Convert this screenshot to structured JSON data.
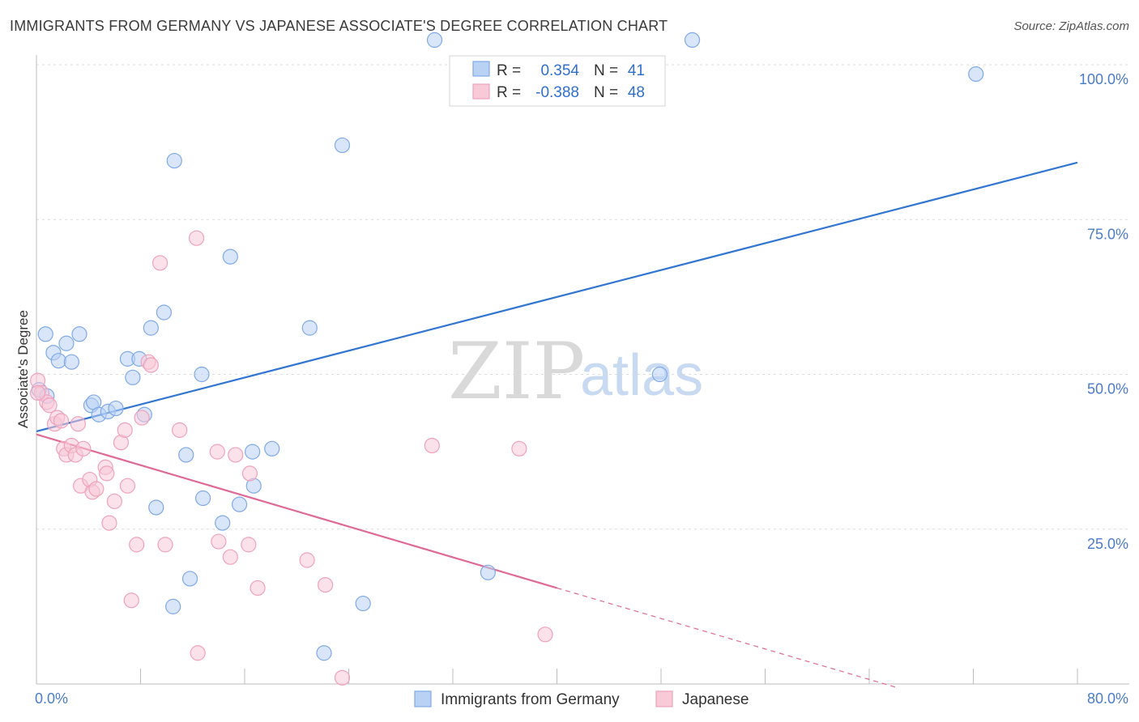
{
  "title": "IMMIGRANTS FROM GERMANY VS JAPANESE ASSOCIATE'S DEGREE CORRELATION CHART",
  "source": "Source: ZipAtlas.com",
  "watermark": {
    "zip": "ZIP",
    "atlas": "atlas"
  },
  "chart_data": {
    "type": "scatter",
    "xlabel": "",
    "ylabel": "Associate's Degree",
    "xlim": [
      0,
      80
    ],
    "ylim": [
      0,
      100
    ],
    "x_tick_labels": {
      "min": "0.0%",
      "max": "80.0%"
    },
    "y_ticks": [
      25,
      50,
      75,
      100
    ],
    "y_tick_labels": [
      "25.0%",
      "50.0%",
      "75.0%",
      "100.0%"
    ],
    "legend": {
      "position": "top-center",
      "rows": [
        {
          "r_label": "R =",
          "r_value": "0.354",
          "n_label": "N =",
          "n_value": "41"
        },
        {
          "r_label": "R =",
          "r_value": "-0.388",
          "n_label": "N =",
          "n_value": "48"
        }
      ]
    },
    "series": [
      {
        "name": "Immigrants from Germany",
        "color": "#7fa9e8",
        "fill": "#b9d2f4",
        "line_color": "#3276d2",
        "trend": {
          "x0": 0,
          "y0": 40.8,
          "x1": 80,
          "y1": 84.2
        },
        "points": [
          [
            0.2,
            47.5
          ],
          [
            0.8,
            46.5
          ],
          [
            0.7,
            56.5
          ],
          [
            1.3,
            53.5
          ],
          [
            1.7,
            52.2
          ],
          [
            2.3,
            55.0
          ],
          [
            2.7,
            52.0
          ],
          [
            3.3,
            56.5
          ],
          [
            4.2,
            45.0
          ],
          [
            4.4,
            45.5
          ],
          [
            4.8,
            43.5
          ],
          [
            5.5,
            44.0
          ],
          [
            6.1,
            44.5
          ],
          [
            7.0,
            52.5
          ],
          [
            7.4,
            49.5
          ],
          [
            7.9,
            52.5
          ],
          [
            8.3,
            43.5
          ],
          [
            8.8,
            57.5
          ],
          [
            9.8,
            60.0
          ],
          [
            10.6,
            84.5
          ],
          [
            11.5,
            37.0
          ],
          [
            12.7,
            50.0
          ],
          [
            9.2,
            28.5
          ],
          [
            11.8,
            17.0
          ],
          [
            10.5,
            12.5
          ],
          [
            12.8,
            30.0
          ],
          [
            14.3,
            26.0
          ],
          [
            14.9,
            69.0
          ],
          [
            15.6,
            29.0
          ],
          [
            16.6,
            37.5
          ],
          [
            16.7,
            32.0
          ],
          [
            18.1,
            38.0
          ],
          [
            21.0,
            57.5
          ],
          [
            22.1,
            5.0
          ],
          [
            23.5,
            87.0
          ],
          [
            25.1,
            13.0
          ],
          [
            30.6,
            104.0
          ],
          [
            34.7,
            18.0
          ],
          [
            47.9,
            50.0
          ],
          [
            50.4,
            104.0
          ],
          [
            72.2,
            98.5
          ]
        ]
      },
      {
        "name": "Japanese",
        "color": "#f0a2bb",
        "fill": "#f8c9d7",
        "line_color": "#e06a96",
        "trend": {
          "x0": 0,
          "y0": 40.3,
          "x1": 40,
          "y1": 15.5
        },
        "trend_ext": {
          "x0": 40,
          "y0": 15.5,
          "x1": 66,
          "y1": -0.5
        },
        "points": [
          [
            0.1,
            49.0
          ],
          [
            0.4,
            47.0
          ],
          [
            0.8,
            45.5
          ],
          [
            1.0,
            45.0
          ],
          [
            1.4,
            42.0
          ],
          [
            1.6,
            43.0
          ],
          [
            1.9,
            42.5
          ],
          [
            2.1,
            38.0
          ],
          [
            2.3,
            37.0
          ],
          [
            2.7,
            38.5
          ],
          [
            3.0,
            37.0
          ],
          [
            3.2,
            42.0
          ],
          [
            3.4,
            32.0
          ],
          [
            3.6,
            38.0
          ],
          [
            4.1,
            33.0
          ],
          [
            4.3,
            31.0
          ],
          [
            4.6,
            31.5
          ],
          [
            5.3,
            35.0
          ],
          [
            5.4,
            34.0
          ],
          [
            5.6,
            26.0
          ],
          [
            6.0,
            29.5
          ],
          [
            6.5,
            39.0
          ],
          [
            6.8,
            41.0
          ],
          [
            7.0,
            32.0
          ],
          [
            7.3,
            13.5
          ],
          [
            7.7,
            22.5
          ],
          [
            8.1,
            43.0
          ],
          [
            8.6,
            52.0
          ],
          [
            8.8,
            51.5
          ],
          [
            9.5,
            68.0
          ],
          [
            9.9,
            22.5
          ],
          [
            11.0,
            41.0
          ],
          [
            12.3,
            72.0
          ],
          [
            12.4,
            5.0
          ],
          [
            13.9,
            37.5
          ],
          [
            14.0,
            23.0
          ],
          [
            14.9,
            20.5
          ],
          [
            15.3,
            37.0
          ],
          [
            16.3,
            22.5
          ],
          [
            16.4,
            34.0
          ],
          [
            17.0,
            15.5
          ],
          [
            20.8,
            20.0
          ],
          [
            22.2,
            16.0
          ],
          [
            23.5,
            1.0
          ],
          [
            30.4,
            38.5
          ],
          [
            37.1,
            38.0
          ],
          [
            39.1,
            8.0
          ],
          [
            0.1,
            47.0
          ]
        ]
      }
    ]
  }
}
